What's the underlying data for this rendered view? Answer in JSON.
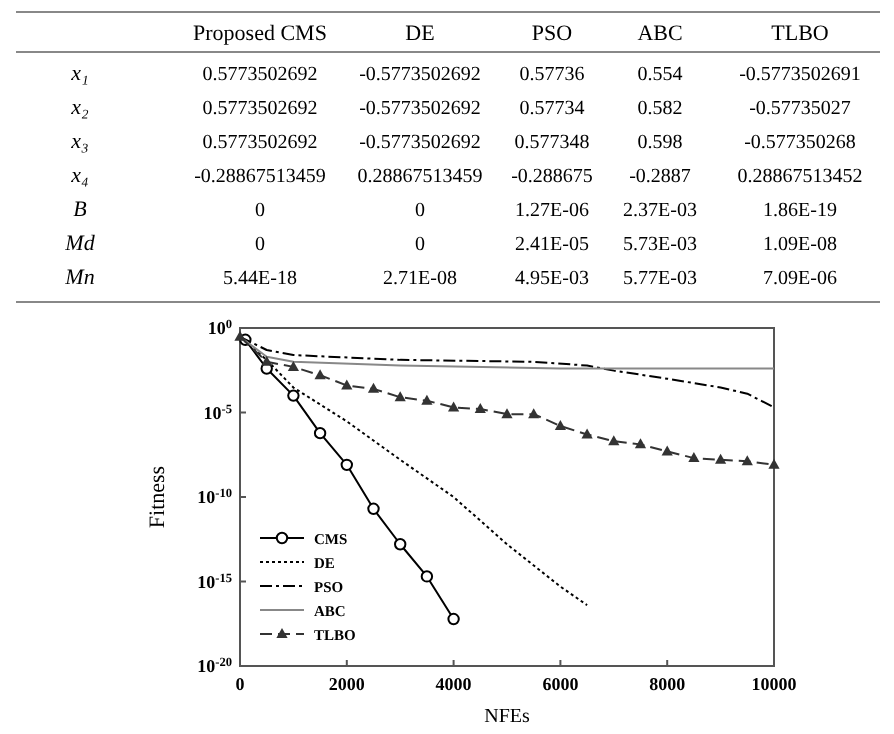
{
  "chart_data": [
    {
      "type": "other",
      "categories": [
        null,
        "Proposed CMS",
        "DE",
        "PSO",
        "ABC",
        "TLBO"
      ],
      "y_categories": [
        "x₁",
        "x₂",
        "x₃",
        "x₄",
        "B",
        "Md",
        "Mn"
      ],
      "cell_labels": [
        [
          "0.5773502692",
          "-0.5773502692",
          "0.57736",
          "0.554",
          "-0.5773502691"
        ],
        [
          "0.5773502692",
          "-0.5773502692",
          "0.57734",
          "0.582",
          "-0.57735027"
        ],
        [
          "0.5773502692",
          "-0.5773502692",
          "0.577348",
          "0.598",
          "-0.577350268"
        ],
        [
          "-0.28867513459",
          "0.28867513459",
          "-0.288675",
          "-0.2887",
          "0.28867513452"
        ],
        [
          "0",
          "0",
          "1.27E-06",
          "2.37E-03",
          "1.86E-19"
        ],
        [
          "0",
          "0",
          "2.41E-05",
          "5.73E-03",
          "1.09E-08"
        ],
        [
          "5.44E-18",
          "2.71E-08",
          "4.95E-03",
          "5.77E-03",
          "7.09E-06"
        ]
      ]
    },
    {
      "type": "line",
      "xlabel": "NFEs",
      "ylabel": "Fitness",
      "log": "y",
      "legend": "bottom left",
      "xlim": [
        0,
        10000
      ],
      "xticks": [
        0,
        2000,
        4000,
        6000,
        8000,
        10000
      ],
      "ylim": [
        1e-20,
        1
      ],
      "yticks": [
        {
          "value": 1e-20,
          "label": "10$^{-20}$"
        },
        {
          "value": 1e-15,
          "label": "10$^{-15}$"
        },
        {
          "value": 1e-10,
          "label": "10$^{-10}$"
        },
        {
          "value": 1e-05,
          "label": "10$^{-5}$"
        },
        {
          "value": 1,
          "label": "10$^{0}$"
        }
      ],
      "series": [
        {
          "name": "CMS",
          "color": "#000000",
          "line_style": "solid",
          "marker": "circle",
          "x": [
            100,
            500,
            1000,
            1500,
            2000,
            2500,
            3000,
            3500,
            4000
          ],
          "values": [
            0.2,
            0.004,
            0.0001,
            6e-07,
            8e-09,
            2e-11,
            1.6e-13,
            2e-15,
            6e-18
          ]
        },
        {
          "name": "DE",
          "color": "#000000",
          "line_style": "dotted",
          "marker": "none",
          "x": [
            0,
            500,
            1000,
            2000,
            3000,
            4000,
            5000,
            6000,
            6500
          ],
          "values": [
            0.3,
            0.013,
            0.0003,
            3e-06,
            1.6e-08,
            1e-10,
            1.6e-13,
            5e-16,
            4e-17
          ]
        },
        {
          "name": "PSO",
          "color": "#000000",
          "line_style": "dashdot",
          "marker": "none",
          "x": [
            0,
            500,
            1000,
            3000,
            5500,
            6500,
            7000,
            8000,
            9000,
            9500,
            10000
          ],
          "values": [
            0.3,
            0.05,
            0.025,
            0.013,
            0.01,
            0.006,
            0.003,
            0.001,
            0.0003,
            0.00013,
            2e-05
          ]
        },
        {
          "name": "ABC",
          "color": "#888888",
          "line_style": "solid",
          "marker": "none",
          "x": [
            0,
            500,
            1000,
            3000,
            6000,
            10000
          ],
          "values": [
            0.3,
            0.02,
            0.01,
            0.006,
            0.004,
            0.004
          ]
        },
        {
          "name": "TLBO",
          "color": "#333333",
          "line_style": "dashed",
          "marker": "triangle",
          "x": [
            0,
            500,
            1000,
            1500,
            2000,
            2500,
            3000,
            3500,
            4000,
            4500,
            5000,
            5500,
            6000,
            6500,
            7000,
            7500,
            8000,
            8500,
            9000,
            9500,
            10000
          ],
          "values": [
            0.3,
            0.01,
            0.005,
            0.0016,
            0.0004,
            0.00025,
            8e-05,
            5e-05,
            2e-05,
            1.6e-05,
            8e-06,
            8e-06,
            1.6e-06,
            5e-07,
            2e-07,
            1.3e-07,
            5e-08,
            2e-08,
            1.6e-08,
            1.3e-08,
            8e-09
          ]
        }
      ]
    }
  ]
}
